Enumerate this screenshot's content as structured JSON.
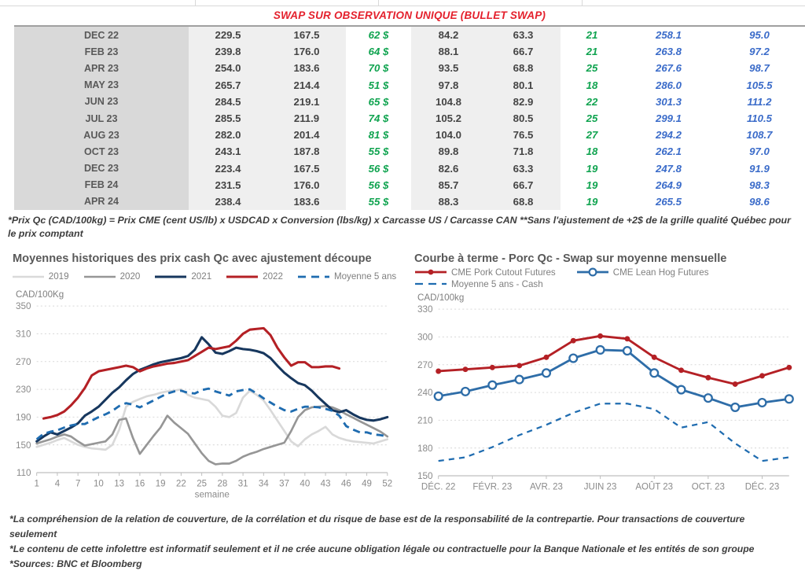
{
  "table": {
    "title": "SWAP SUR OBSERVATION UNIQUE (BULLET SWAP)",
    "rows": [
      [
        "DEC 22",
        "229.5",
        "167.5",
        "62 $",
        "84.2",
        "63.3",
        "21",
        "258.1",
        "95.0"
      ],
      [
        "FEB 23",
        "239.8",
        "176.0",
        "64 $",
        "88.1",
        "66.7",
        "21",
        "263.8",
        "97.2"
      ],
      [
        "APR 23",
        "254.0",
        "183.6",
        "70 $",
        "93.5",
        "68.8",
        "25",
        "267.6",
        "98.7"
      ],
      [
        "MAY 23",
        "265.7",
        "214.4",
        "51 $",
        "97.8",
        "80.1",
        "18",
        "286.0",
        "105.5"
      ],
      [
        "JUN 23",
        "284.5",
        "219.1",
        "65 $",
        "104.8",
        "82.9",
        "22",
        "301.3",
        "111.2"
      ],
      [
        "JUL 23",
        "285.5",
        "211.9",
        "74 $",
        "105.2",
        "80.5",
        "25",
        "299.1",
        "110.5"
      ],
      [
        "AUG 23",
        "282.0",
        "201.4",
        "81 $",
        "104.0",
        "76.5",
        "27",
        "294.2",
        "108.7"
      ],
      [
        "OCT 23",
        "243.1",
        "187.8",
        "55 $",
        "89.8",
        "71.8",
        "18",
        "262.1",
        "97.0"
      ],
      [
        "DEC 23",
        "223.4",
        "167.5",
        "56 $",
        "82.6",
        "63.3",
        "19",
        "247.8",
        "91.9"
      ],
      [
        "FEB 24",
        "231.5",
        "176.0",
        "56 $",
        "85.7",
        "66.7",
        "19",
        "264.9",
        "98.3"
      ],
      [
        "APR 24",
        "238.4",
        "183.6",
        "55 $",
        "88.3",
        "68.8",
        "19",
        "265.5",
        "98.6"
      ]
    ],
    "footnote": "*Prix Qc (CAD/100kg) = Prix CME (cent US/lb) x USDCAD x Conversion (lbs/kg) x Carcasse US / Carcasse CAN **Sans l'ajustement de +2$ de la grille qualité Québec pour le prix comptant"
  },
  "chart_data": [
    {
      "type": "line",
      "title": "Moyennes historiques des prix cash Qc avec ajustement découpe",
      "unit_label": "CAD/100Kg",
      "xlabel": "semaine",
      "ylim": [
        110,
        350
      ],
      "ytick_step": 40,
      "x_ticks": [
        {
          "i": 0,
          "label": "1"
        },
        {
          "i": 3,
          "label": "4"
        },
        {
          "i": 6,
          "label": "7"
        },
        {
          "i": 9,
          "label": "10"
        },
        {
          "i": 12,
          "label": "13"
        },
        {
          "i": 15,
          "label": "16"
        },
        {
          "i": 18,
          "label": "19"
        },
        {
          "i": 21,
          "label": "22"
        },
        {
          "i": 24,
          "label": "25"
        },
        {
          "i": 27,
          "label": "28"
        },
        {
          "i": 30,
          "label": "31"
        },
        {
          "i": 33,
          "label": "34"
        },
        {
          "i": 36,
          "label": "37"
        },
        {
          "i": 39,
          "label": "40"
        },
        {
          "i": 42,
          "label": "43"
        },
        {
          "i": 45,
          "label": "46"
        },
        {
          "i": 48,
          "label": "49"
        },
        {
          "i": 51,
          "label": "52"
        }
      ],
      "legend_rows": [
        [
          0,
          1,
          2,
          3,
          4
        ]
      ],
      "legend_centered": true,
      "series": [
        {
          "name": "2019",
          "color": "#d9d9d9",
          "width": 2.6,
          "values": [
            147,
            150,
            153,
            157,
            160,
            155,
            150,
            147,
            145,
            144,
            143,
            150,
            172,
            205,
            212,
            216,
            220,
            222,
            225,
            227,
            228,
            230,
            222,
            218,
            216,
            214,
            205,
            192,
            190,
            196,
            218,
            228,
            222,
            214,
            200,
            185,
            170,
            155,
            148,
            158,
            165,
            170,
            176,
            165,
            160,
            157,
            155,
            154,
            153,
            152,
            155,
            158
          ]
        },
        {
          "name": "2020",
          "color": "#969696",
          "width": 2.6,
          "values": [
            152,
            155,
            158,
            162,
            165,
            162,
            155,
            149,
            151,
            153,
            155,
            165,
            186,
            188,
            160,
            137,
            150,
            163,
            175,
            192,
            182,
            174,
            166,
            152,
            138,
            127,
            122,
            123,
            123,
            127,
            133,
            137,
            140,
            144,
            147,
            150,
            153,
            170,
            190,
            200,
            204,
            205,
            206,
            204,
            200,
            194,
            189,
            184,
            179,
            174,
            169,
            162
          ]
        },
        {
          "name": "2021",
          "color": "#17375e",
          "width": 3,
          "values": [
            155,
            162,
            168,
            165,
            170,
            175,
            181,
            192,
            198,
            205,
            215,
            225,
            233,
            243,
            252,
            258,
            262,
            266,
            269,
            271,
            273,
            275,
            278,
            287,
            305,
            295,
            283,
            281,
            285,
            290,
            288,
            287,
            285,
            282,
            275,
            264,
            254,
            246,
            239,
            236,
            228,
            218,
            209,
            200,
            197,
            200,
            194,
            189,
            186,
            185,
            187,
            190
          ]
        },
        {
          "name": "2022",
          "color": "#b42025",
          "width": 3,
          "values": [
            null,
            188,
            190,
            193,
            198,
            207,
            218,
            232,
            250,
            256,
            258,
            260,
            262,
            264,
            262,
            256,
            260,
            263,
            265,
            267,
            268,
            270,
            272,
            278,
            284,
            290,
            288,
            290,
            292,
            300,
            310,
            316,
            317,
            318,
            308,
            290,
            276,
            264,
            269,
            269,
            262,
            262,
            263,
            263,
            260,
            null,
            null,
            null,
            null,
            null,
            null,
            null
          ]
        },
        {
          "name": "Moyenne 5 ans",
          "color": "#1f6cb0",
          "width": 2.8,
          "dash": "9 6",
          "values": [
            158,
            166,
            169,
            171,
            175,
            178,
            180,
            180,
            185,
            190,
            194,
            199,
            206,
            210,
            208,
            204,
            209,
            214,
            219,
            224,
            227,
            228,
            225,
            224,
            229,
            231,
            227,
            224,
            221,
            227,
            229,
            230,
            224,
            217,
            211,
            205,
            200,
            198,
            202,
            205,
            205,
            204,
            202,
            199,
            192,
            177,
            172,
            168,
            168,
            165,
            164,
            162
          ]
        }
      ]
    },
    {
      "type": "line",
      "title": "Courbe à terme - Porc Qc - Swap sur moyenne mensuelle",
      "unit_label": "CAD/100kg",
      "xlabel": "",
      "ylim": [
        150,
        330
      ],
      "ytick_step": 30,
      "x_ticks": [
        {
          "i": 0,
          "label": "DÉC. 22"
        },
        {
          "i": 2,
          "label": "FÉVR. 23"
        },
        {
          "i": 4,
          "label": "AVR. 23"
        },
        {
          "i": 6,
          "label": "JUIN 23"
        },
        {
          "i": 8,
          "label": "AOÛT 23"
        },
        {
          "i": 10,
          "label": "OCT. 23"
        },
        {
          "i": 12,
          "label": "DÉC. 23"
        }
      ],
      "legend_rows": [
        [
          0,
          1
        ],
        [
          2
        ]
      ],
      "legend_centered": false,
      "series": [
        {
          "name": "CME Pork Cutout Futures",
          "color": "#b42025",
          "width": 2.8,
          "marker": "filled",
          "values": [
            263,
            265,
            267,
            269,
            278,
            296,
            301,
            298,
            278,
            264,
            256,
            249,
            258,
            267
          ]
        },
        {
          "name": "CME Lean Hog Futures",
          "color": "#2e6da8",
          "width": 2.8,
          "marker": "open",
          "values": [
            236,
            241,
            248,
            254,
            261,
            277,
            286,
            285,
            261,
            243,
            234,
            224,
            229,
            233
          ]
        },
        {
          "name": "Moyenne 5 ans - Cash",
          "color": "#1f6cb0",
          "width": 2.2,
          "dash": "7 6",
          "values": [
            166,
            170,
            181,
            194,
            205,
            218,
            228,
            228,
            222,
            202,
            208,
            185,
            166,
            170
          ]
        }
      ]
    }
  ],
  "footer": {
    "lines": [
      "*La compréhension de la relation de couverture, de la corrélation et du risque de base est de la responsabilité de la contrepartie. Pour transactions de couverture seulement",
      "*Le contenu de cette infolettre est informatif seulement et il ne crée aucune obligation légale ou contractuelle pour la Banque Nationale et les entités de son groupe",
      "*Sources: BNC et Bloomberg"
    ]
  },
  "colors": {
    "title_red": "#e4202c",
    "green_value": "#0fa34f",
    "blue_value": "#3a6bc9",
    "navy_line": "#17375e",
    "red_line": "#b42025",
    "blue_line": "#2e6da8",
    "dashed_blue": "#1f6cb0",
    "light_gray_line": "#d9d9d9",
    "gray_line": "#969696"
  }
}
